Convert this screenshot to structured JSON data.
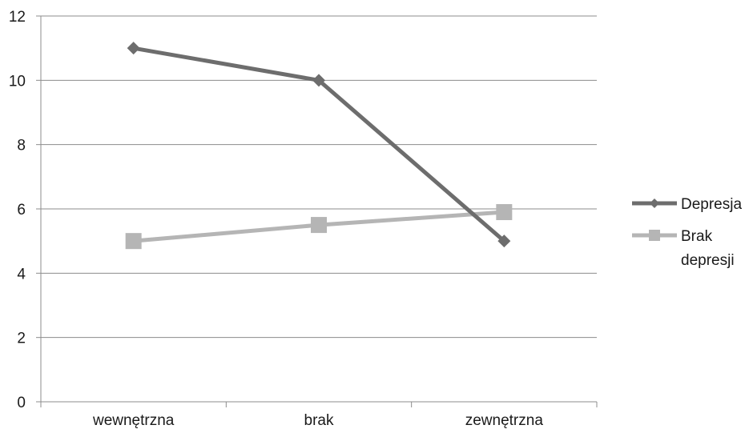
{
  "chart_data": {
    "type": "line",
    "categories": [
      "wewnętrzna",
      "brak",
      "zewnętrzna"
    ],
    "series": [
      {
        "name": "Depresja",
        "values": [
          11,
          10,
          5
        ],
        "color": "#6d6d6d",
        "marker": "diamond"
      },
      {
        "name": "Brak depresji",
        "values": [
          5,
          5.5,
          5.9
        ],
        "color": "#b5b5b5",
        "marker": "square"
      }
    ],
    "ylim": [
      0,
      12
    ],
    "yticks": [
      "0",
      "2",
      "4",
      "6",
      "8",
      "10",
      "12"
    ],
    "xlabel": "",
    "ylabel": "",
    "grid": true,
    "legend": {
      "position": "right",
      "entries": [
        {
          "lines": [
            "Depresja"
          ]
        },
        {
          "lines": [
            "Brak",
            "depresji"
          ]
        }
      ]
    },
    "colors": {
      "axis": "#8c8c8c",
      "grid": "#8c8c8c"
    }
  }
}
